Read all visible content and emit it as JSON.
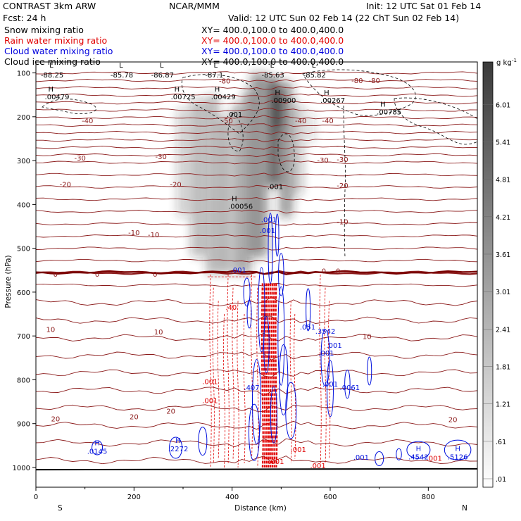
{
  "header": {
    "model": "CONTRAST  3km ARW",
    "center": "NCAR/MMM",
    "init": "Init: 12 UTC Sat 01 Feb 14",
    "fcst": "Fcst:    24 h",
    "valid": "Valid: 12 UTC Sun 02 Feb 14 (22 ChT Sun 02 Feb 14)"
  },
  "legend": [
    {
      "name": "Snow mixing ratio",
      "color": "#000000",
      "xy": "XY=  400.0,100.0  to  400.0,400.0"
    },
    {
      "name": "Rain water mixing ratio",
      "color": "#e00000",
      "xy": "XY=  400.0,100.0  to  400.0,400.0"
    },
    {
      "name": "Cloud water mixing ratio",
      "color": "#0000dd",
      "xy": "XY=  400.0,100.0  to  400.0,400.0"
    },
    {
      "name": "Cloud ice mixing ratio",
      "color": "#000000",
      "xy": "XY=  400.0,100.0  to  400.0,400.0"
    }
  ],
  "chart_data": {
    "type": "cross-section",
    "xlabel": "Distance (km)",
    "ylabel": "Pressure (hPa)",
    "xlim": [
      0,
      900
    ],
    "ylim": [
      1045,
      75
    ],
    "xticks": [
      0,
      200,
      400,
      600,
      800
    ],
    "yticks": [
      100,
      200,
      300,
      400,
      500,
      600,
      700,
      800,
      900,
      1000
    ],
    "x_end_labels": {
      "left": "S",
      "right": "N"
    },
    "colorbar": {
      "unit": "g kg",
      "unit_exp": "-1",
      "levels": [
        0.01,
        0.61,
        1.21,
        1.81,
        2.41,
        3.01,
        3.61,
        4.21,
        4.81,
        5.41,
        6.01
      ],
      "labels": [
        ".01",
        ".61",
        "1.21",
        "1.81",
        "2.41",
        "3.01",
        "3.61",
        "4.21",
        "4.81",
        "5.41",
        "6.01"
      ]
    },
    "temperature_labels": [
      {
        "x": 385,
        "p": 119,
        "v": "-80"
      },
      {
        "x": 690,
        "p": 118,
        "v": "-80"
      },
      {
        "x": 655,
        "p": 118,
        "v": "-80"
      },
      {
        "x": 390,
        "p": 210,
        "v": "-50"
      },
      {
        "x": 105,
        "p": 210,
        "v": "-40"
      },
      {
        "x": 540,
        "p": 210,
        "v": "-40"
      },
      {
        "x": 595,
        "p": 210,
        "v": "-40"
      },
      {
        "x": 90,
        "p": 295,
        "v": "-30"
      },
      {
        "x": 255,
        "p": 292,
        "v": "-30"
      },
      {
        "x": 585,
        "p": 300,
        "v": "-30"
      },
      {
        "x": 625,
        "p": 298,
        "v": "-30"
      },
      {
        "x": 60,
        "p": 355,
        "v": "-20"
      },
      {
        "x": 285,
        "p": 355,
        "v": "-20"
      },
      {
        "x": 625,
        "p": 358,
        "v": "-20"
      },
      {
        "x": 240,
        "p": 470,
        "v": "-10"
      },
      {
        "x": 625,
        "p": 440,
        "v": "-10"
      },
      {
        "x": 200,
        "p": 465,
        "v": "-10"
      },
      {
        "x": 40,
        "p": 560,
        "v": "0"
      },
      {
        "x": 125,
        "p": 560,
        "v": "0"
      },
      {
        "x": 243,
        "p": 560,
        "v": "0"
      },
      {
        "x": 587,
        "p": 553,
        "v": "0"
      },
      {
        "x": 616,
        "p": 553,
        "v": "0"
      },
      {
        "x": 30,
        "p": 686,
        "v": "10"
      },
      {
        "x": 250,
        "p": 692,
        "v": "10"
      },
      {
        "x": 675,
        "p": 702,
        "v": "10"
      },
      {
        "x": 40,
        "p": 890,
        "v": "20"
      },
      {
        "x": 200,
        "p": 885,
        "v": "20"
      },
      {
        "x": 275,
        "p": 872,
        "v": "20"
      },
      {
        "x": 850,
        "p": 892,
        "v": "20"
      }
    ],
    "upper_minima": [
      {
        "x": 10,
        "p": 101,
        "v": "-88.25"
      },
      {
        "x": 152,
        "p": 101,
        "v": "-85.78"
      },
      {
        "x": 235,
        "p": 101,
        "v": "-86.87"
      },
      {
        "x": 345,
        "p": 101,
        "v": "-87.1"
      },
      {
        "x": 460,
        "p": 101,
        "v": "-85.63"
      },
      {
        "x": 545,
        "p": 101,
        "v": "-85.82"
      }
    ],
    "cloud_ice_highs": [
      {
        "x": 18,
        "p": 155,
        "v": ".00479"
      },
      {
        "x": 275,
        "p": 155,
        "v": ".00725"
      },
      {
        "x": 357,
        "p": 155,
        "v": ".00429"
      },
      {
        "x": 480,
        "p": 163,
        "v": ".00900"
      },
      {
        "x": 580,
        "p": 163,
        "v": ".00267"
      },
      {
        "x": 695,
        "p": 190,
        "v": ".00785"
      },
      {
        "x": 392,
        "p": 405,
        "v": ".00056"
      }
    ],
    "snow_labels": [
      {
        "x": 405,
        "p": 200,
        "v": ".001"
      },
      {
        "x": 488,
        "p": 365,
        "v": ".001"
      }
    ],
    "rain_labels": [
      {
        "x": 355,
        "p": 810,
        "v": ".001"
      },
      {
        "x": 355,
        "p": 853,
        "v": ".001"
      },
      {
        "x": 535,
        "p": 965,
        "v": ".001"
      },
      {
        "x": 575,
        "p": 1002,
        "v": ".001"
      },
      {
        "x": 812,
        "p": 985,
        "v": ".001"
      },
      {
        "x": 398,
        "p": 640,
        "v": ".40"
      },
      {
        "x": 490,
        "p": 992,
        "v": ".001"
      }
    ],
    "cloud_water_labels": [
      {
        "x": 475,
        "p": 440,
        "v": ".001"
      },
      {
        "x": 472,
        "p": 465,
        "v": ".001"
      },
      {
        "x": 413,
        "p": 555,
        "v": ".001"
      },
      {
        "x": 554,
        "p": 685,
        "v": ".051"
      },
      {
        "x": 590,
        "p": 695,
        "v": ".3542"
      },
      {
        "x": 608,
        "p": 727,
        "v": ".001"
      },
      {
        "x": 592,
        "p": 745,
        "v": ".001"
      },
      {
        "x": 600,
        "p": 815,
        "v": ".001"
      },
      {
        "x": 640,
        "p": 823,
        "v": ".0061"
      },
      {
        "x": 440,
        "p": 823,
        "v": ".407"
      },
      {
        "x": 663,
        "p": 982,
        "v": ".001"
      }
    ],
    "cloud_water_highs": [
      {
        "x": 125,
        "p": 962,
        "v": ".0145"
      },
      {
        "x": 290,
        "p": 957,
        "v": ".2272"
      },
      {
        "x": 780,
        "p": 975,
        "v": ".4542"
      },
      {
        "x": 860,
        "p": 975,
        "v": ".5126"
      }
    ]
  }
}
